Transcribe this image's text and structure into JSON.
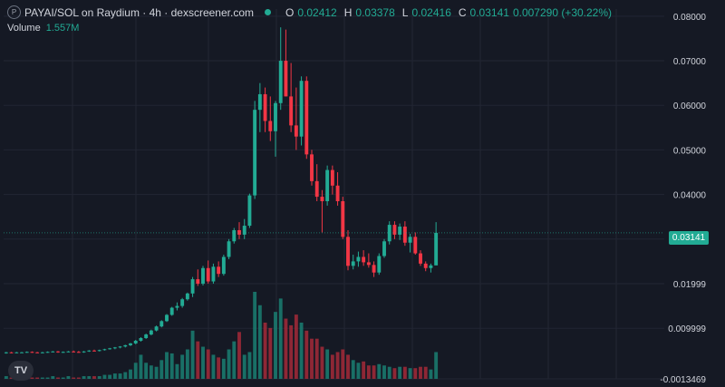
{
  "header": {
    "symbol_badge": "P",
    "title": "PAYAI/SOL on Raydium · 4h · dexscreener.com",
    "ohlc": [
      {
        "key": "O",
        "value": "0.02412"
      },
      {
        "key": "H",
        "value": "0.03378"
      },
      {
        "key": "L",
        "value": "0.02416"
      },
      {
        "key": "C",
        "value": "0.03141"
      },
      {
        "key": "",
        "value": "0.007290 (+30.22%)"
      }
    ],
    "volume_label": "Volume",
    "volume_value": "1.557M"
  },
  "branding": {
    "logo_text": "TV"
  },
  "colors": {
    "up": "#22ab94",
    "down": "#f23645",
    "up_vol": "#1a7f72",
    "down_vol": "#a32a38",
    "grid": "#222633",
    "background": "#151924"
  },
  "chart_data": {
    "type": "candlestick",
    "title": "PAYAI/SOL on Raydium · 4h · dexscreener.com",
    "ylim": [
      -0.0013469,
      0.0816
    ],
    "y_ticks": [
      "0.08000",
      "0.07000",
      "0.06000",
      "0.05000",
      "0.04000",
      "0.03000",
      "0.01999",
      "0.009999",
      "-0.0013469"
    ],
    "y_tick_values": [
      0.08,
      0.07,
      0.06,
      0.05,
      0.04,
      0.03,
      0.01999,
      0.009999,
      -0.0013469
    ],
    "last_price": "0.03141",
    "last_price_value": 0.03141,
    "volume_series_name": "Volume",
    "candles": [
      [
        0.0045,
        0.0047,
        0.0043,
        0.0046,
        0.02
      ],
      [
        0.0046,
        0.0047,
        0.0044,
        0.0045,
        0.01
      ],
      [
        0.0045,
        0.0047,
        0.0044,
        0.0046,
        0.01
      ],
      [
        0.0046,
        0.0047,
        0.0045,
        0.0046,
        0.01
      ],
      [
        0.0046,
        0.0048,
        0.0045,
        0.0047,
        0.01
      ],
      [
        0.0047,
        0.0048,
        0.0045,
        0.0046,
        0.01
      ],
      [
        0.0046,
        0.0047,
        0.0044,
        0.0045,
        0.01
      ],
      [
        0.0045,
        0.0047,
        0.0044,
        0.0046,
        0.01
      ],
      [
        0.0046,
        0.0048,
        0.0045,
        0.0047,
        0.01
      ],
      [
        0.0047,
        0.0049,
        0.0046,
        0.0048,
        0.02
      ],
      [
        0.0048,
        0.0049,
        0.0045,
        0.0046,
        0.01
      ],
      [
        0.0046,
        0.0048,
        0.0045,
        0.0047,
        0.01
      ],
      [
        0.0047,
        0.0049,
        0.0046,
        0.0048,
        0.02
      ],
      [
        0.0048,
        0.005,
        0.0046,
        0.0047,
        0.01
      ],
      [
        0.0047,
        0.0049,
        0.0045,
        0.0046,
        0.01
      ],
      [
        0.0046,
        0.0049,
        0.0045,
        0.0048,
        0.02
      ],
      [
        0.0048,
        0.0051,
        0.0047,
        0.005,
        0.02
      ],
      [
        0.005,
        0.0052,
        0.0048,
        0.0049,
        0.02
      ],
      [
        0.0049,
        0.0052,
        0.0048,
        0.0051,
        0.02
      ],
      [
        0.0051,
        0.0054,
        0.005,
        0.0053,
        0.03
      ],
      [
        0.0053,
        0.0056,
        0.0052,
        0.0055,
        0.03
      ],
      [
        0.0055,
        0.0058,
        0.0053,
        0.0057,
        0.04
      ],
      [
        0.0057,
        0.006,
        0.0055,
        0.0059,
        0.04
      ],
      [
        0.0059,
        0.0063,
        0.0057,
        0.0062,
        0.05
      ],
      [
        0.0062,
        0.0067,
        0.006,
        0.0066,
        0.07
      ],
      [
        0.0066,
        0.0074,
        0.0064,
        0.0072,
        0.12
      ],
      [
        0.0072,
        0.008,
        0.007,
        0.0078,
        0.18
      ],
      [
        0.0078,
        0.0088,
        0.0076,
        0.0086,
        0.12
      ],
      [
        0.0086,
        0.0097,
        0.0084,
        0.0095,
        0.1
      ],
      [
        0.0095,
        0.0106,
        0.0093,
        0.0104,
        0.09
      ],
      [
        0.0104,
        0.0118,
        0.0102,
        0.0116,
        0.14
      ],
      [
        0.0116,
        0.0132,
        0.0114,
        0.013,
        0.2
      ],
      [
        0.013,
        0.0148,
        0.0128,
        0.0146,
        0.19
      ],
      [
        0.0146,
        0.0158,
        0.014,
        0.015,
        0.11
      ],
      [
        0.015,
        0.0168,
        0.0146,
        0.0165,
        0.18
      ],
      [
        0.0165,
        0.018,
        0.0162,
        0.0178,
        0.22
      ],
      [
        0.0178,
        0.0215,
        0.017,
        0.021,
        0.36
      ],
      [
        0.021,
        0.0232,
        0.0195,
        0.02,
        0.28
      ],
      [
        0.02,
        0.024,
        0.0196,
        0.0235,
        0.24
      ],
      [
        0.0235,
        0.0252,
        0.02,
        0.0205,
        0.22
      ],
      [
        0.0205,
        0.0245,
        0.02,
        0.0238,
        0.18
      ],
      [
        0.0238,
        0.025,
        0.0215,
        0.0222,
        0.16
      ],
      [
        0.0222,
        0.0265,
        0.0218,
        0.026,
        0.15
      ],
      [
        0.026,
        0.03,
        0.0255,
        0.0295,
        0.22
      ],
      [
        0.0295,
        0.0325,
        0.029,
        0.032,
        0.28
      ],
      [
        0.032,
        0.0338,
        0.03,
        0.031,
        0.35
      ],
      [
        0.031,
        0.0345,
        0.03,
        0.033,
        0.18
      ],
      [
        0.033,
        0.0402,
        0.0325,
        0.0398,
        0.2
      ],
      [
        0.0398,
        0.061,
        0.039,
        0.059,
        0.65
      ],
      [
        0.059,
        0.065,
        0.054,
        0.0625,
        0.55
      ],
      [
        0.0625,
        0.064,
        0.054,
        0.0565,
        0.42
      ],
      [
        0.0565,
        0.062,
        0.052,
        0.0542,
        0.38
      ],
      [
        0.0542,
        0.061,
        0.0485,
        0.0605,
        0.5
      ],
      [
        0.0605,
        0.0775,
        0.059,
        0.07,
        0.6
      ],
      [
        0.07,
        0.077,
        0.062,
        0.062,
        0.45
      ],
      [
        0.062,
        0.0695,
        0.054,
        0.0555,
        0.4
      ],
      [
        0.0555,
        0.064,
        0.05,
        0.053,
        0.48
      ],
      [
        0.053,
        0.0665,
        0.051,
        0.0655,
        0.42
      ],
      [
        0.0655,
        0.0665,
        0.048,
        0.049,
        0.36
      ],
      [
        0.049,
        0.05,
        0.042,
        0.043,
        0.3
      ],
      [
        0.043,
        0.0468,
        0.0385,
        0.0395,
        0.3
      ],
      [
        0.0395,
        0.041,
        0.0315,
        0.0385,
        0.24
      ],
      [
        0.0385,
        0.0465,
        0.0375,
        0.0455,
        0.22
      ],
      [
        0.0455,
        0.0465,
        0.04,
        0.042,
        0.18
      ],
      [
        0.042,
        0.045,
        0.0375,
        0.0385,
        0.2
      ],
      [
        0.0385,
        0.0395,
        0.03,
        0.0305,
        0.22
      ],
      [
        0.0305,
        0.032,
        0.023,
        0.024,
        0.18
      ],
      [
        0.024,
        0.0265,
        0.0232,
        0.025,
        0.14
      ],
      [
        0.025,
        0.0272,
        0.0238,
        0.026,
        0.12
      ],
      [
        0.026,
        0.0275,
        0.024,
        0.0248,
        0.13
      ],
      [
        0.0248,
        0.0268,
        0.0236,
        0.0242,
        0.1
      ],
      [
        0.0242,
        0.025,
        0.0215,
        0.0225,
        0.1
      ],
      [
        0.0225,
        0.0268,
        0.022,
        0.0262,
        0.11
      ],
      [
        0.0262,
        0.03,
        0.0258,
        0.0295,
        0.1
      ],
      [
        0.0295,
        0.034,
        0.0288,
        0.0332,
        0.09
      ],
      [
        0.0332,
        0.034,
        0.03,
        0.031,
        0.08
      ],
      [
        0.031,
        0.0335,
        0.0298,
        0.0328,
        0.09
      ],
      [
        0.0328,
        0.034,
        0.0285,
        0.0292,
        0.09
      ],
      [
        0.0292,
        0.0312,
        0.027,
        0.0305,
        0.08
      ],
      [
        0.0305,
        0.0315,
        0.0265,
        0.0268,
        0.08
      ],
      [
        0.0268,
        0.0275,
        0.024,
        0.0245,
        0.09
      ],
      [
        0.0245,
        0.025,
        0.0228,
        0.0235,
        0.09
      ],
      [
        0.0235,
        0.0245,
        0.0225,
        0.0241,
        0.07
      ],
      [
        0.0241,
        0.0338,
        0.0242,
        0.0314,
        0.2
      ]
    ]
  }
}
